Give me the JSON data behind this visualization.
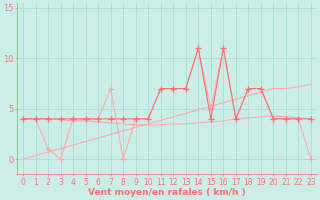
{
  "xlabel": "Vent moyen/en rafales ( km/h )",
  "bg_color": "#cceee8",
  "grid_color": "#aaddda",
  "line_color_dark": "#ff7070",
  "line_color_light": "#ffaaaa",
  "xlim_min": -0.5,
  "xlim_max": 23.5,
  "ylim_min": -1.5,
  "ylim_max": 15.5,
  "yticks": [
    0,
    5,
    10,
    15
  ],
  "xticks": [
    0,
    1,
    2,
    3,
    4,
    5,
    6,
    7,
    8,
    9,
    10,
    11,
    12,
    13,
    14,
    15,
    16,
    17,
    18,
    19,
    20,
    21,
    22,
    23
  ],
  "hours": [
    0,
    1,
    2,
    3,
    4,
    5,
    6,
    7,
    8,
    9,
    10,
    11,
    12,
    13,
    14,
    15,
    16,
    17,
    18,
    19,
    20,
    21,
    22,
    23
  ],
  "wind_mean": [
    4,
    4,
    4,
    4,
    4,
    4,
    4,
    4,
    4,
    4,
    4,
    7,
    7,
    7,
    11,
    4,
    11,
    4,
    7,
    7,
    4,
    4,
    4,
    4
  ],
  "wind_gust": [
    4,
    4,
    1,
    0,
    4,
    4,
    4,
    7,
    0,
    4,
    4,
    7,
    7,
    7,
    11,
    5,
    11,
    4,
    7,
    7,
    4,
    4,
    4,
    0
  ],
  "trend_up": [
    0.0,
    0.35,
    0.7,
    1.05,
    1.4,
    1.75,
    2.1,
    2.45,
    2.8,
    3.15,
    3.5,
    3.85,
    4.2,
    4.55,
    4.9,
    5.25,
    5.6,
    5.95,
    6.3,
    6.65,
    7.0,
    7.0,
    7.2,
    7.4
  ],
  "trend_flat": [
    4.0,
    4.0,
    4.0,
    3.9,
    3.8,
    3.8,
    3.7,
    3.6,
    3.5,
    3.4,
    3.4,
    3.4,
    3.5,
    3.5,
    3.6,
    3.7,
    3.8,
    4.0,
    4.1,
    4.2,
    4.3,
    4.2,
    4.1,
    4.0
  ],
  "marker_size": 4,
  "linewidth_main": 0.8,
  "linewidth_trend": 0.8,
  "xlabel_fontsize": 6.5,
  "tick_fontsize": 5.5
}
